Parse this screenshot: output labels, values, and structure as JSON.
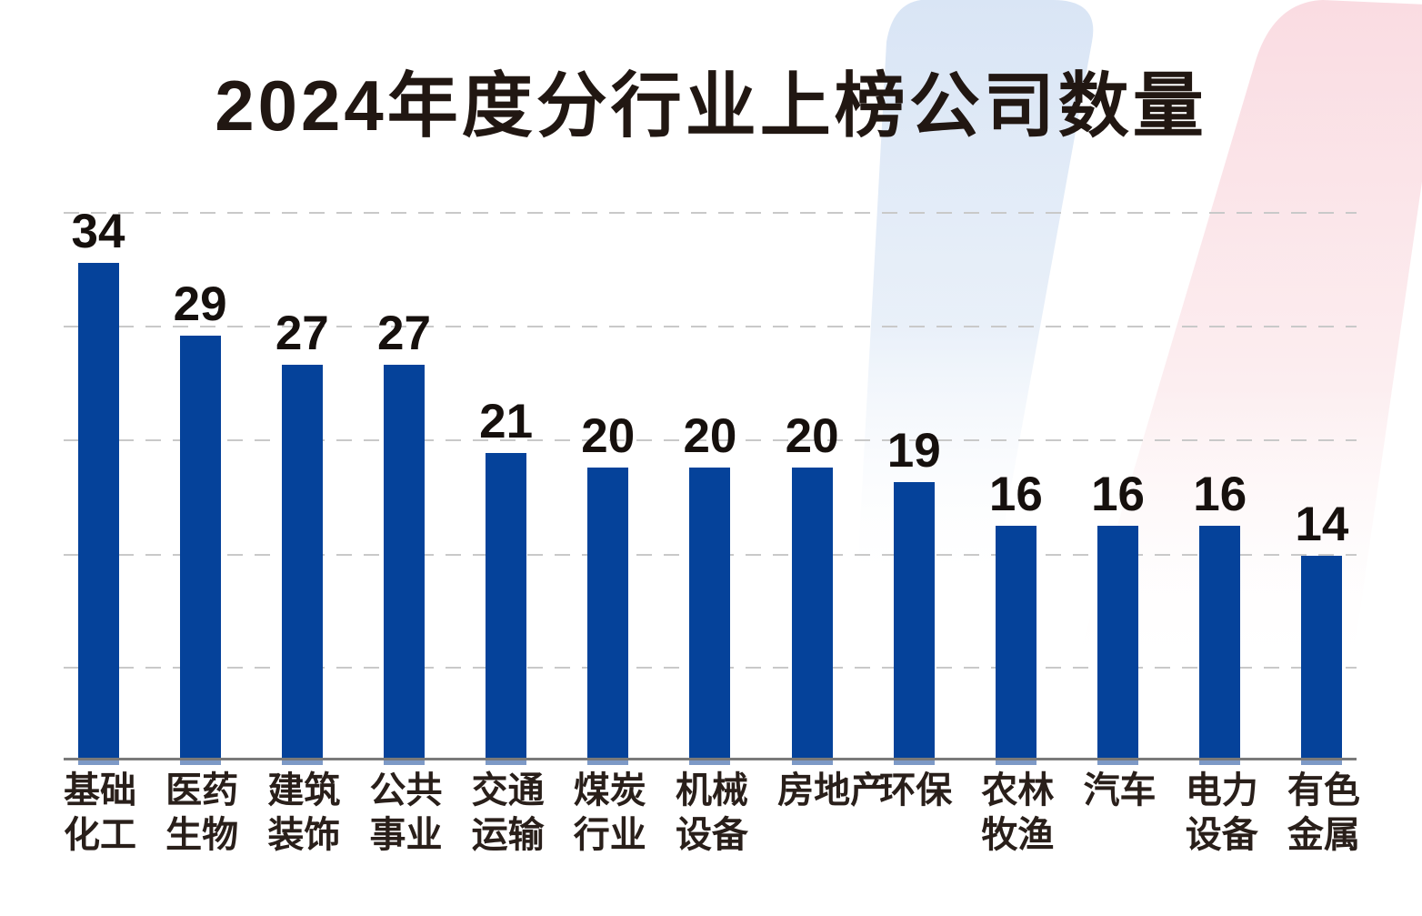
{
  "chart_data": {
    "type": "bar",
    "title": "2024年度分行业上榜公司数量",
    "categories": [
      "基础化工",
      "医药生物",
      "建筑装饰",
      "公共事业",
      "交通运输",
      "煤炭行业",
      "机械设备",
      "房地产",
      "环保",
      "农林牧渔",
      "汽车",
      "电力设备",
      "有色金属"
    ],
    "category_lines": [
      [
        "基础",
        "化工"
      ],
      [
        "医药",
        "生物"
      ],
      [
        "建筑",
        "装饰"
      ],
      [
        "公共",
        "事业"
      ],
      [
        "交通",
        "运输"
      ],
      [
        "煤炭",
        "行业"
      ],
      [
        "机械",
        "设备"
      ],
      [
        "房地产"
      ],
      [
        "环保"
      ],
      [
        "农林",
        "牧渔"
      ],
      [
        "汽车"
      ],
      [
        "电力",
        "设备"
      ],
      [
        "有色",
        "金属"
      ]
    ],
    "values": [
      34,
      29,
      27,
      27,
      21,
      20,
      20,
      20,
      19,
      16,
      16,
      16,
      14
    ],
    "value_labels_shown": true,
    "xlabel": "",
    "ylabel": "",
    "ylim": [
      0,
      38
    ],
    "y_axis_ticks_visible": false,
    "legend": "none",
    "grid": "horizontal-dashed",
    "bar_color": "#05429a",
    "bar_bottom_edge_color": "#7d99c6",
    "axis_line_color": "#7a7a7a",
    "gridline_color": "#c9c9c9",
    "text_color": "#211712",
    "background_shape_colors": {
      "blue_slash_top": "#d9e5f5",
      "pink_slash_top": "#fadce2"
    }
  }
}
